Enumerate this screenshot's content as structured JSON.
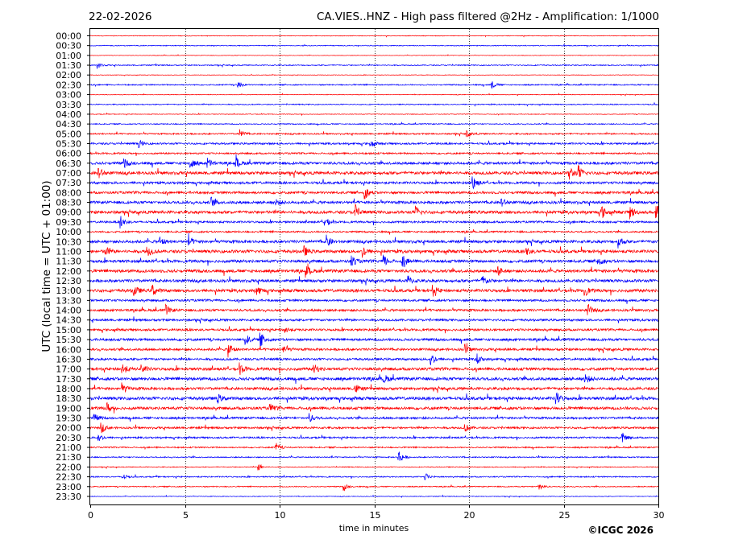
{
  "chart_data": {
    "type": "line",
    "date": "22-02-2026",
    "title": "CA.VIES..HNZ - High pass filtered @2Hz - Amplification: 1/1000",
    "xlabel": "time in minutes",
    "ylabel": "UTC (local time = UTC + 01:00)",
    "copyright": "©ICGC 2026",
    "xlim": [
      0,
      30
    ],
    "xticks": [
      0,
      5,
      10,
      15,
      20,
      25,
      30
    ],
    "grid": "vertical dotted lines at 5-minute ticks",
    "row_labels": [
      "00:00",
      "00:30",
      "01:00",
      "01:30",
      "02:00",
      "02:30",
      "03:00",
      "03:30",
      "04:00",
      "04:30",
      "05:00",
      "05:30",
      "06:00",
      "06:30",
      "07:00",
      "07:30",
      "08:00",
      "08:30",
      "09:00",
      "09:30",
      "10:00",
      "10:30",
      "11:00",
      "11:30",
      "12:00",
      "12:30",
      "13:00",
      "13:30",
      "14:00",
      "14:30",
      "15:00",
      "15:30",
      "16:00",
      "16:30",
      "17:00",
      "17:30",
      "18:00",
      "18:30",
      "19:00",
      "19:30",
      "20:00",
      "20:30",
      "21:00",
      "21:30",
      "22:00",
      "22:30",
      "23:00",
      "23:30"
    ],
    "row_colors": [
      "#ff0000",
      "#0000ff"
    ],
    "noise_level": [
      0.4,
      0.5,
      0.3,
      0.6,
      0.3,
      0.7,
      0.4,
      0.6,
      0.4,
      0.6,
      0.9,
      1.1,
      1.0,
      1.6,
      1.8,
      1.4,
      1.5,
      1.6,
      1.8,
      1.2,
      1.0,
      1.7,
      1.8,
      1.7,
      1.8,
      1.7,
      1.8,
      1.3,
      1.4,
      1.3,
      1.3,
      1.5,
      1.4,
      1.3,
      1.7,
      1.8,
      1.6,
      1.8,
      1.7,
      1.3,
      1.2,
      1.0,
      0.8,
      0.7,
      0.5,
      0.7,
      0.6,
      0.4
    ],
    "bursts": [
      {
        "row": 3,
        "t": 0.4,
        "amp": 4
      },
      {
        "row": 5,
        "t": 7.8,
        "amp": 5
      },
      {
        "row": 5,
        "t": 21.2,
        "amp": 5
      },
      {
        "row": 10,
        "t": 7.9,
        "amp": 5
      },
      {
        "row": 10,
        "t": 19.9,
        "amp": 4
      },
      {
        "row": 11,
        "t": 2.6,
        "amp": 4
      },
      {
        "row": 11,
        "t": 14.8,
        "amp": 4
      },
      {
        "row": 13,
        "t": 1.8,
        "amp": 5
      },
      {
        "row": 13,
        "t": 5.3,
        "amp": 6
      },
      {
        "row": 13,
        "t": 6.2,
        "amp": 6
      },
      {
        "row": 13,
        "t": 7.7,
        "amp": 7
      },
      {
        "row": 14,
        "t": 0.4,
        "amp": 9
      },
      {
        "row": 14,
        "t": 25.3,
        "amp": 9
      },
      {
        "row": 14,
        "t": 25.8,
        "amp": 8
      },
      {
        "row": 15,
        "t": 20.2,
        "amp": 10
      },
      {
        "row": 16,
        "t": 14.5,
        "amp": 8
      },
      {
        "row": 17,
        "t": 6.4,
        "amp": 6
      },
      {
        "row": 17,
        "t": 9.8,
        "amp": 5
      },
      {
        "row": 17,
        "t": 21.7,
        "amp": 6
      },
      {
        "row": 18,
        "t": 14.0,
        "amp": 10
      },
      {
        "row": 18,
        "t": 17.2,
        "amp": 7
      },
      {
        "row": 18,
        "t": 27.0,
        "amp": 8
      },
      {
        "row": 18,
        "t": 28.5,
        "amp": 8
      },
      {
        "row": 18,
        "t": 29.9,
        "amp": 9
      },
      {
        "row": 19,
        "t": 1.6,
        "amp": 8
      },
      {
        "row": 19,
        "t": 12.4,
        "amp": 6
      },
      {
        "row": 21,
        "t": 3.7,
        "amp": 6
      },
      {
        "row": 21,
        "t": 5.2,
        "amp": 6
      },
      {
        "row": 21,
        "t": 12.5,
        "amp": 7
      },
      {
        "row": 21,
        "t": 27.9,
        "amp": 7
      },
      {
        "row": 22,
        "t": 0.8,
        "amp": 7
      },
      {
        "row": 22,
        "t": 3.0,
        "amp": 7
      },
      {
        "row": 22,
        "t": 11.3,
        "amp": 6
      },
      {
        "row": 22,
        "t": 14.4,
        "amp": 7
      },
      {
        "row": 22,
        "t": 23.0,
        "amp": 7
      },
      {
        "row": 23,
        "t": 13.8,
        "amp": 7
      },
      {
        "row": 23,
        "t": 15.5,
        "amp": 7
      },
      {
        "row": 23,
        "t": 16.5,
        "amp": 8
      },
      {
        "row": 23,
        "t": 26.8,
        "amp": 7
      },
      {
        "row": 24,
        "t": 11.4,
        "amp": 7
      },
      {
        "row": 24,
        "t": 21.5,
        "amp": 6
      },
      {
        "row": 25,
        "t": 16.8,
        "amp": 6
      },
      {
        "row": 25,
        "t": 20.7,
        "amp": 7
      },
      {
        "row": 26,
        "t": 2.3,
        "amp": 7
      },
      {
        "row": 26,
        "t": 3.3,
        "amp": 7
      },
      {
        "row": 26,
        "t": 8.8,
        "amp": 6
      },
      {
        "row": 26,
        "t": 18.1,
        "amp": 6
      },
      {
        "row": 26,
        "t": 26.1,
        "amp": 7
      },
      {
        "row": 28,
        "t": 4.0,
        "amp": 6
      },
      {
        "row": 28,
        "t": 26.3,
        "amp": 7
      },
      {
        "row": 30,
        "t": 10.3,
        "amp": 5
      },
      {
        "row": 31,
        "t": 8.2,
        "amp": 7
      },
      {
        "row": 31,
        "t": 9.0,
        "amp": 9
      },
      {
        "row": 32,
        "t": 7.3,
        "amp": 9
      },
      {
        "row": 32,
        "t": 10.2,
        "amp": 6
      },
      {
        "row": 32,
        "t": 19.8,
        "amp": 6
      },
      {
        "row": 33,
        "t": 18.0,
        "amp": 8
      },
      {
        "row": 33,
        "t": 20.4,
        "amp": 7
      },
      {
        "row": 34,
        "t": 1.7,
        "amp": 7
      },
      {
        "row": 34,
        "t": 2.7,
        "amp": 7
      },
      {
        "row": 34,
        "t": 7.9,
        "amp": 7
      },
      {
        "row": 34,
        "t": 11.8,
        "amp": 6
      },
      {
        "row": 35,
        "t": 15.5,
        "amp": 6
      },
      {
        "row": 35,
        "t": 26.1,
        "amp": 8
      },
      {
        "row": 36,
        "t": 1.7,
        "amp": 6
      },
      {
        "row": 36,
        "t": 14.0,
        "amp": 6
      },
      {
        "row": 37,
        "t": 6.7,
        "amp": 6
      },
      {
        "row": 37,
        "t": 24.6,
        "amp": 8
      },
      {
        "row": 38,
        "t": 0.9,
        "amp": 6
      },
      {
        "row": 38,
        "t": 9.5,
        "amp": 5
      },
      {
        "row": 39,
        "t": 0.2,
        "amp": 6
      },
      {
        "row": 39,
        "t": 11.6,
        "amp": 5
      },
      {
        "row": 40,
        "t": 0.6,
        "amp": 6
      },
      {
        "row": 40,
        "t": 19.8,
        "amp": 5
      },
      {
        "row": 41,
        "t": 0.4,
        "amp": 6
      },
      {
        "row": 41,
        "t": 28.1,
        "amp": 6
      },
      {
        "row": 42,
        "t": 9.8,
        "amp": 6
      },
      {
        "row": 43,
        "t": 16.3,
        "amp": 9
      },
      {
        "row": 44,
        "t": 8.9,
        "amp": 4
      },
      {
        "row": 45,
        "t": 1.7,
        "amp": 4
      },
      {
        "row": 45,
        "t": 17.7,
        "amp": 4
      },
      {
        "row": 46,
        "t": 13.4,
        "amp": 5
      },
      {
        "row": 46,
        "t": 23.7,
        "amp": 5
      }
    ]
  }
}
